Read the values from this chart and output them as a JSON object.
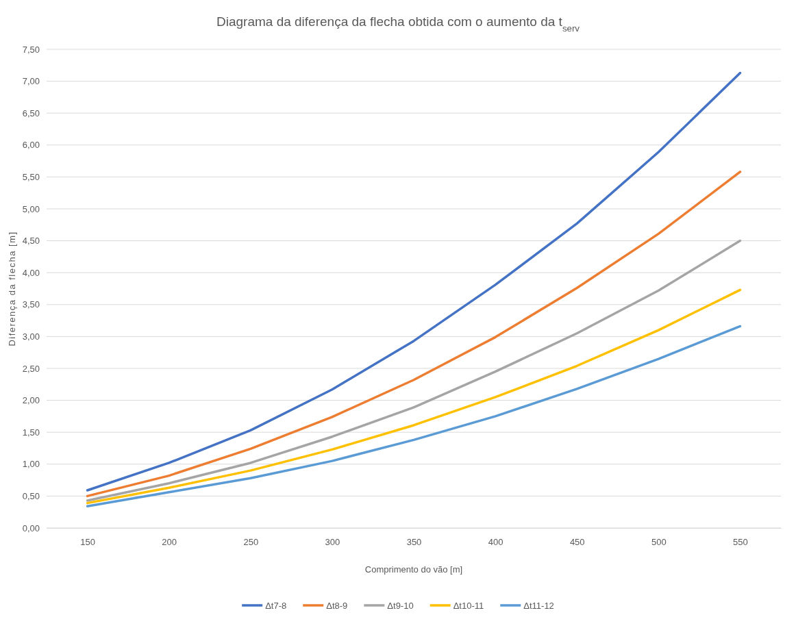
{
  "chart_data": {
    "type": "line",
    "title": "Diagrama da diferença da flecha obtida com o aumento da t$_{serv}$",
    "xlabel": "Comprimento do vão [m]",
    "ylabel": "Diferença da flecha [m]",
    "categories": [
      "150",
      "200",
      "250",
      "300",
      "350",
      "400",
      "450",
      "500",
      "550"
    ],
    "ylim": [
      0,
      7.5
    ],
    "yticks": [
      {
        "value": 0,
        "label": "0,00"
      },
      {
        "value": 0.5,
        "label": "0,50"
      },
      {
        "value": 1,
        "label": "1,00"
      },
      {
        "value": 1.5,
        "label": "1,50"
      },
      {
        "value": 2,
        "label": "2,00"
      },
      {
        "value": 2.5,
        "label": "2,50"
      },
      {
        "value": 3,
        "label": "3,00"
      },
      {
        "value": 3.5,
        "label": "3,50"
      },
      {
        "value": 4,
        "label": "4,00"
      },
      {
        "value": 4.5,
        "label": "4,50"
      },
      {
        "value": 5,
        "label": "5,00"
      },
      {
        "value": 5.5,
        "label": "5,50"
      },
      {
        "value": 6,
        "label": "6,00"
      },
      {
        "value": 6.5,
        "label": "6,50"
      },
      {
        "value": 7,
        "label": "7,00"
      },
      {
        "value": 7.5,
        "label": "7,50"
      }
    ],
    "grid": "y",
    "legend": "bottom",
    "marker": "none",
    "line_style": "solid",
    "series": [
      {
        "name": "Δt7-8",
        "color": "#4472c4",
        "values": [
          0.59,
          1.02,
          1.53,
          2.17,
          2.93,
          3.81,
          4.77,
          5.89,
          7.13
        ]
      },
      {
        "name": "Δt8-9",
        "color": "#ed7d31",
        "values": [
          0.5,
          0.82,
          1.24,
          1.74,
          2.32,
          2.99,
          3.76,
          4.61,
          5.58
        ]
      },
      {
        "name": "Δt9-10",
        "color": "#a5a5a5",
        "values": [
          0.43,
          0.7,
          1.02,
          1.43,
          1.89,
          2.45,
          3.05,
          3.72,
          4.5
        ]
      },
      {
        "name": "Δt10-11",
        "color": "#ffc000",
        "values": [
          0.39,
          0.63,
          0.9,
          1.23,
          1.61,
          2.05,
          2.54,
          3.1,
          3.73
        ]
      },
      {
        "name": "Δt11-12",
        "color": "#5b9bd5",
        "values": [
          0.34,
          0.56,
          0.78,
          1.05,
          1.38,
          1.75,
          2.18,
          2.65,
          3.16
        ]
      }
    ]
  }
}
